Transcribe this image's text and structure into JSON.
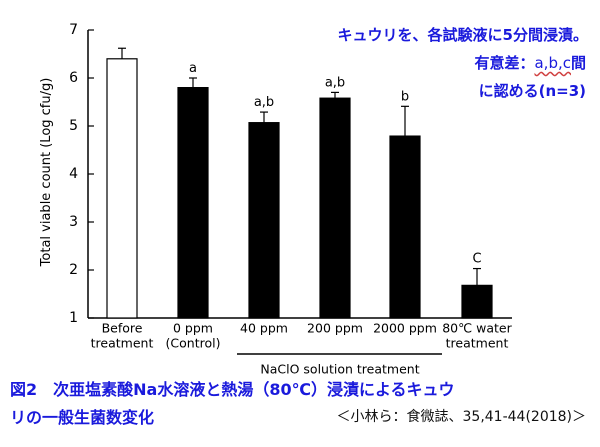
{
  "chart_data": {
    "type": "bar",
    "categories": [
      [
        "Before",
        "treatment"
      ],
      [
        "0 ppm",
        "(Control)"
      ],
      [
        "40 ppm"
      ],
      [
        "200 ppm"
      ],
      [
        "2000 ppm"
      ],
      [
        "80℃ water",
        "treatment"
      ]
    ],
    "values": [
      6.4,
      5.8,
      5.07,
      5.58,
      4.79,
      1.68
    ],
    "errors": [
      0.22,
      0.2,
      0.22,
      0.12,
      0.62,
      0.35
    ],
    "fills": [
      "#ffffff",
      "#000000",
      "#000000",
      "#000000",
      "#000000",
      "#000000"
    ],
    "sig_labels": [
      "",
      "a",
      "a,b",
      "a,b",
      "b",
      "C"
    ],
    "ylabel": "Total viable count (Log cfu/g)",
    "ylim": [
      1,
      7
    ],
    "yticks": [
      1,
      2,
      3,
      4,
      5,
      6,
      7
    ],
    "group_label": "NaClO solution treatment",
    "grid": false
  },
  "notes": {
    "line1": "キュウリを、各試験液に5分間浸漬。",
    "line2_prefix": "有意差：",
    "line2_letters": "a,b,c",
    "line2_suffix": "間",
    "line3": "に認める(n=3)"
  },
  "caption": {
    "line1": "図2　次亜塩素酸Na水溶液と熱湯（80℃）浸漬によるキュウ",
    "line2": "リの一般生菌数変化",
    "citation": "＜小林ら：食微誌、35,41-44(2018)＞"
  },
  "colors": {
    "annotation": "#1a1adc",
    "bar": "#000000"
  }
}
